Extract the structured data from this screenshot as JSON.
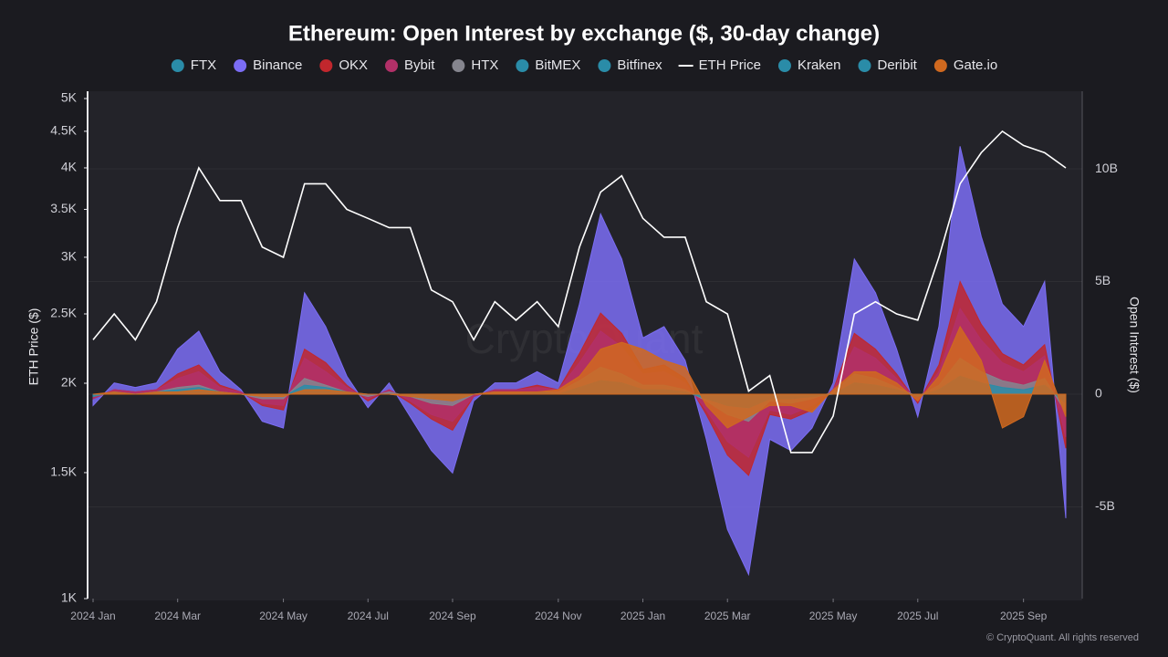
{
  "chart_data": {
    "type": "area",
    "title": "Ethereum: Open Interest by exchange ($, 30-day change)",
    "ylabel": "ETH Price ($)",
    "y2label": "Open Interest ($)",
    "watermark": "CryptoQuant",
    "footer": "© CryptoQuant. All rights reserved",
    "yscale": "log",
    "grid": true,
    "legend": "top",
    "categories": [
      "2024 Jan",
      null,
      null,
      null,
      "2024 Mar",
      null,
      null,
      null,
      null,
      "2024 May",
      null,
      null,
      null,
      "2024 Jul",
      null,
      null,
      null,
      "2024 Sep",
      null,
      null,
      null,
      null,
      "2024 Nov",
      null,
      null,
      null,
      "2025 Jan",
      null,
      null,
      null,
      "2025 Mar",
      null,
      null,
      null,
      null,
      "2025 May",
      null,
      null,
      null,
      "2025 Jul",
      null,
      null,
      null,
      null,
      "2025 Sep",
      null,
      null
    ],
    "ylim": [
      1000,
      5000
    ],
    "yticks": [
      {
        "value": 1000,
        "label": "1K"
      },
      {
        "value": 1500,
        "label": "1.5K"
      },
      {
        "value": 2000,
        "label": "2K"
      },
      {
        "value": 2500,
        "label": "2.5K"
      },
      {
        "value": 3000,
        "label": "3K"
      },
      {
        "value": 3500,
        "label": "3.5K"
      },
      {
        "value": 4000,
        "label": "4K"
      },
      {
        "value": 4500,
        "label": "4.5K"
      },
      {
        "value": 5000,
        "label": "5K"
      }
    ],
    "y2lim": [
      -9070000000.0,
      13120000000.0
    ],
    "y2ticks": [
      {
        "value": -5000000000.0,
        "label": "-5B"
      },
      0,
      {
        "value": 5000000000.0,
        "label": "5B"
      },
      {
        "value": 10000000000.0,
        "label": "10B"
      }
    ],
    "series": [
      {
        "name": "FTX",
        "color": "#2a8ca8",
        "axis": "y2",
        "type": "area",
        "values": [
          0,
          0,
          0,
          0,
          0,
          0,
          0,
          0,
          0,
          0,
          0,
          0,
          0,
          0,
          0,
          0,
          0,
          0,
          0,
          0,
          0,
          0,
          0,
          0,
          0,
          0,
          0,
          0,
          0,
          0,
          0,
          0,
          0,
          0,
          0,
          0,
          0,
          0,
          0,
          0,
          0,
          0,
          0,
          0,
          0,
          0,
          0
        ]
      },
      {
        "name": "Binance",
        "color": "#7b6df5",
        "axis": "y2",
        "type": "area",
        "values": [
          -500000000.0,
          500000000.0,
          300000000.0,
          500000000.0,
          2000000000.0,
          2800000000.0,
          1000000000.0,
          200000000.0,
          -1200000000.0,
          -1500000000.0,
          4500000000.0,
          3000000000.0,
          800000000.0,
          -600000000.0,
          500000000.0,
          -1000000000.0,
          -2500000000.0,
          -3500000000.0,
          -300000000.0,
          500000000.0,
          500000000.0,
          1000000000.0,
          500000000.0,
          4000000000.0,
          8000000000.0,
          6000000000.0,
          2500000000.0,
          3000000000.0,
          1500000000.0,
          -2000000000.0,
          -6000000000.0,
          -8000000000.0,
          -2000000000.0,
          -2500000000.0,
          -1500000000.0,
          500000000.0,
          6000000000.0,
          4500000000.0,
          2000000000.0,
          -1000000000.0,
          3000000000.0,
          11000000000.0,
          7000000000.0,
          4000000000.0,
          3000000000.0,
          5000000000.0,
          -5500000000.0
        ]
      },
      {
        "name": "OKX",
        "color": "#c1272d",
        "axis": "y2",
        "type": "area",
        "values": [
          -200000000.0,
          200000000.0,
          100000000.0,
          200000000.0,
          900000000.0,
          1300000000.0,
          400000000.0,
          100000000.0,
          -500000000.0,
          -700000000.0,
          2000000000.0,
          1400000000.0,
          400000000.0,
          -300000000.0,
          200000000.0,
          -400000000.0,
          -1100000000.0,
          -1600000000.0,
          -100000000.0,
          200000000.0,
          200000000.0,
          400000000.0,
          200000000.0,
          1800000000.0,
          3600000000.0,
          2700000000.0,
          1100000000.0,
          1300000000.0,
          700000000.0,
          -900000000.0,
          -2700000000.0,
          -3600000000.0,
          -900000000.0,
          -1100000000.0,
          -700000000.0,
          200000000.0,
          2700000000.0,
          2000000000.0,
          900000000.0,
          -400000000.0,
          1300000000.0,
          5000000000.0,
          3100000000.0,
          1800000000.0,
          1300000000.0,
          2200000000.0,
          -2400000000.0
        ]
      },
      {
        "name": "Bybit",
        "color": "#b23068",
        "axis": "y2",
        "type": "area",
        "values": [
          -200000000.0,
          200000000.0,
          100000000.0,
          200000000.0,
          700000000.0,
          1000000000.0,
          300000000.0,
          100000000.0,
          -400000000.0,
          -500000000.0,
          1600000000.0,
          1000000000.0,
          300000000.0,
          -200000000.0,
          200000000.0,
          -300000000.0,
          -900000000.0,
          -1200000000.0,
          -100000000.0,
          200000000.0,
          200000000.0,
          300000000.0,
          200000000.0,
          1400000000.0,
          2800000000.0,
          2100000000.0,
          900000000.0,
          1000000000.0,
          500000000.0,
          -700000000.0,
          -2100000000.0,
          -2800000000.0,
          -700000000.0,
          -900000000.0,
          -500000000.0,
          200000000.0,
          2100000000.0,
          1600000000.0,
          700000000.0,
          -300000000.0,
          1000000000.0,
          3800000000.0,
          2400000000.0,
          1400000000.0,
          1000000000.0,
          1700000000.0,
          -1900000000.0
        ]
      },
      {
        "name": "HTX",
        "color": "#85858e",
        "axis": "y2",
        "type": "area",
        "values": [
          -100000000.0,
          100000000.0,
          0,
          100000000.0,
          300000000.0,
          400000000.0,
          100000000.0,
          0,
          -200000000.0,
          -200000000.0,
          700000000.0,
          400000000.0,
          100000000.0,
          -100000000.0,
          100000000.0,
          -100000000.0,
          -400000000.0,
          -500000000.0,
          0,
          100000000.0,
          100000000.0,
          100000000.0,
          100000000.0,
          600000000.0,
          1200000000.0,
          900000000.0,
          400000000.0,
          400000000.0,
          200000000.0,
          -300000000.0,
          -900000000.0,
          -1200000000.0,
          -300000000.0,
          -400000000.0,
          -200000000.0,
          100000000.0,
          900000000.0,
          700000000.0,
          300000000.0,
          -100000000.0,
          400000000.0,
          1600000000.0,
          1000000000.0,
          600000000.0,
          400000000.0,
          700000000.0,
          -800000000.0
        ]
      },
      {
        "name": "BitMEX",
        "color": "#2a8ca8",
        "axis": "y2",
        "type": "area",
        "values": [
          0,
          0,
          0,
          0,
          0,
          0,
          0,
          0,
          0,
          0,
          0,
          0,
          0,
          0,
          0,
          0,
          0,
          0,
          0,
          0,
          0,
          0,
          0,
          0,
          0,
          0,
          0,
          0,
          0,
          0,
          0,
          0,
          0,
          0,
          0,
          0,
          0,
          0,
          0,
          0,
          0,
          0,
          0,
          0,
          0,
          0,
          0
        ]
      },
      {
        "name": "Bitfinex",
        "color": "#2a8ca8",
        "axis": "y2",
        "type": "area",
        "values": [
          0,
          0,
          0,
          0,
          0,
          0,
          0,
          0,
          0,
          0,
          0,
          0,
          0,
          0,
          0,
          0,
          0,
          0,
          0,
          0,
          0,
          0,
          0,
          0,
          0,
          0,
          0,
          0,
          0,
          0,
          0,
          0,
          0,
          0,
          0,
          0,
          0,
          0,
          0,
          0,
          0,
          0,
          0,
          0,
          0,
          0,
          0
        ]
      },
      {
        "name": "ETH Price",
        "color": "#ffffff",
        "axis": "y",
        "type": "line",
        "values": [
          2300,
          2500,
          2300,
          2600,
          3300,
          4000,
          3600,
          3600,
          3100,
          3000,
          3800,
          3800,
          3500,
          3400,
          3300,
          3300,
          2700,
          2600,
          2300,
          2600,
          2450,
          2600,
          2400,
          3100,
          3700,
          3900,
          3400,
          3200,
          3200,
          2600,
          2500,
          1950,
          2050,
          1600,
          1600,
          1800,
          2500,
          2600,
          2500,
          2450,
          3000,
          3800,
          4200,
          4500,
          4300,
          4200,
          4000
        ]
      },
      {
        "name": "Kraken",
        "color": "#2a8ca8",
        "axis": "y2",
        "type": "area",
        "values": [
          0,
          0,
          0,
          0,
          0,
          0,
          0,
          0,
          0,
          0,
          0,
          0,
          0,
          0,
          0,
          0,
          0,
          0,
          0,
          0,
          0,
          0,
          0,
          0,
          0,
          0,
          0,
          0,
          0,
          0,
          0,
          0,
          0,
          0,
          0,
          0,
          0,
          0,
          0,
          0,
          0,
          0,
          0,
          0,
          0,
          0,
          0
        ]
      },
      {
        "name": "Deribit",
        "color": "#2a8ca8",
        "axis": "y2",
        "type": "area",
        "values": [
          -100000000.0,
          100000000.0,
          0,
          100000000.0,
          200000000.0,
          300000000.0,
          100000000.0,
          0,
          -100000000.0,
          -100000000.0,
          400000000.0,
          300000000.0,
          100000000.0,
          0,
          0,
          -100000000.0,
          -200000000.0,
          -300000000.0,
          0,
          0,
          0,
          100000000.0,
          0,
          300000000.0,
          600000000.0,
          500000000.0,
          200000000.0,
          200000000.0,
          100000000.0,
          -200000000.0,
          -500000000.0,
          -600000000.0,
          -200000000.0,
          -200000000.0,
          -100000000.0,
          0,
          500000000.0,
          400000000.0,
          200000000.0,
          -100000000.0,
          200000000.0,
          800000000.0,
          500000000.0,
          300000000.0,
          200000000.0,
          400000000.0,
          -400000000.0
        ]
      },
      {
        "name": "Gate.io",
        "color": "#d0691f",
        "axis": "y2",
        "type": "area",
        "values": [
          0,
          100000000.0,
          0,
          100000000.0,
          100000000.0,
          200000000.0,
          100000000.0,
          0,
          -100000000.0,
          -100000000.0,
          200000000.0,
          200000000.0,
          100000000.0,
          0,
          0,
          -100000000.0,
          -200000000.0,
          -300000000.0,
          0,
          100000000.0,
          100000000.0,
          100000000.0,
          200000000.0,
          800000000.0,
          2000000000.0,
          2300000000.0,
          2000000000.0,
          1500000000.0,
          1200000000.0,
          -500000000.0,
          -1500000000.0,
          -1000000000.0,
          -500000000.0,
          -500000000.0,
          -800000000.0,
          200000000.0,
          1000000000.0,
          1000000000.0,
          500000000.0,
          -300000000.0,
          800000000.0,
          3000000000.0,
          1500000000.0,
          -1500000000.0,
          -1000000000.0,
          1500000000.0,
          -1000000000.0
        ]
      }
    ]
  }
}
